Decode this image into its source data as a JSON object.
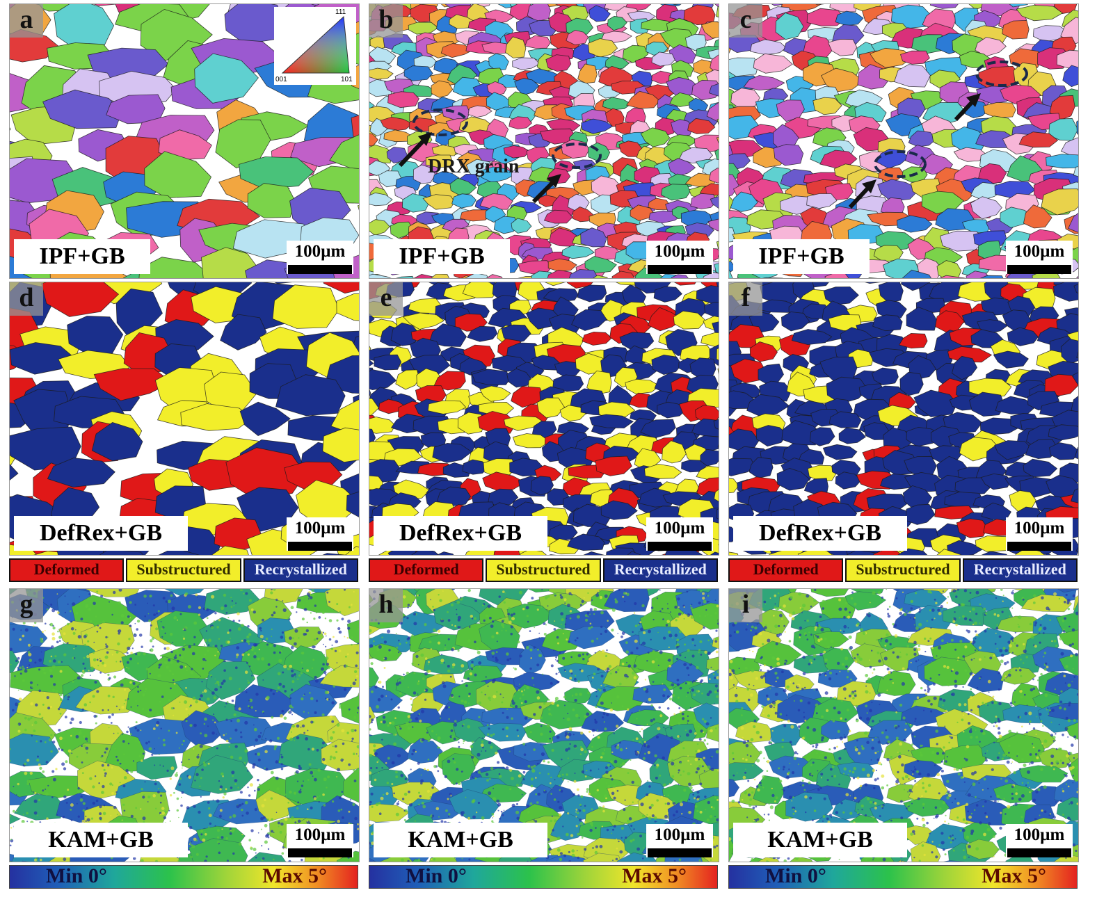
{
  "panels": [
    {
      "id": "a",
      "type": "ipf",
      "tag": "IPF+GB",
      "scale": "100µm"
    },
    {
      "id": "b",
      "type": "ipf",
      "tag": "IPF+GB",
      "scale": "100µm",
      "annotation": "DRX grain"
    },
    {
      "id": "c",
      "type": "ipf",
      "tag": "IPF+GB",
      "scale": "100µm"
    },
    {
      "id": "d",
      "type": "defrex",
      "tag": "DefRex+GB",
      "scale": "100µm"
    },
    {
      "id": "e",
      "type": "defrex",
      "tag": "DefRex+GB",
      "scale": "100µm"
    },
    {
      "id": "f",
      "type": "defrex",
      "tag": "DefRex+GB",
      "scale": "100µm"
    },
    {
      "id": "g",
      "type": "kam",
      "tag": "KAM+GB",
      "scale": "100µm"
    },
    {
      "id": "h",
      "type": "kam",
      "tag": "KAM+GB",
      "scale": "100µm"
    },
    {
      "id": "i",
      "type": "kam",
      "tag": "KAM+GB",
      "scale": "100µm"
    }
  ],
  "ipf_key": {
    "top": "111",
    "left": "001",
    "right": "101"
  },
  "defrex_legend": {
    "deformed": "Deformed",
    "substructured": "Substructured",
    "recrystallized": "Recrystallized"
  },
  "kam_legend": {
    "min": "Min 0°",
    "max": "Max 5°"
  },
  "colors": {
    "deformed": "#e01818",
    "substructured": "#f2ee2a",
    "recrystallized": "#1a2f8c"
  }
}
